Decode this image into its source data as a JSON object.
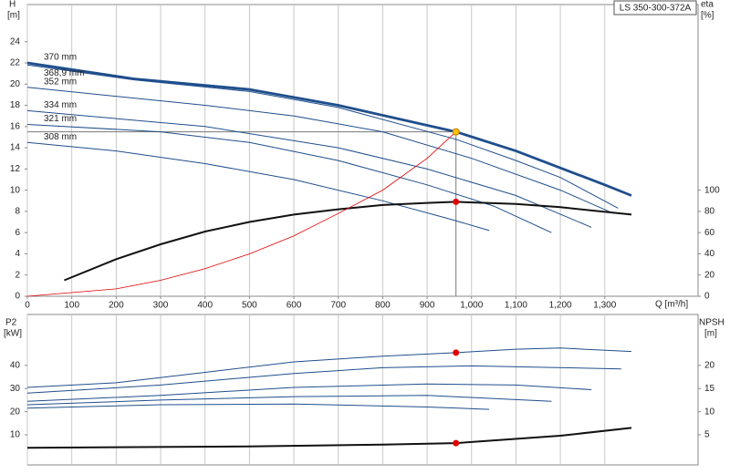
{
  "chart_data": [
    {
      "type": "line",
      "title": "LS 350-300-372A",
      "xlabel": "Q [m³/h]",
      "ylabel": "H",
      "ylabel_unit": "[m]",
      "y2label": "eta",
      "y2label_unit": "[%]",
      "xlim": [
        0,
        1510
      ],
      "xticks": [
        0,
        100,
        200,
        300,
        400,
        500,
        600,
        700,
        800,
        900,
        {
          "value": 1000,
          "label": "1,000"
        },
        {
          "value": 1100,
          "label": "1,100"
        },
        {
          "value": 1200,
          "label": "1,200"
        },
        {
          "value": 1300,
          "label": "1,300"
        }
      ],
      "ylim": [
        0,
        27.5
      ],
      "yticks": [
        0,
        2,
        4,
        6,
        8,
        10,
        12,
        14,
        16,
        18,
        20,
        22,
        24
      ],
      "y2lim": [
        0,
        275
      ],
      "y2ticks": [
        0,
        20,
        40,
        60,
        80,
        100
      ],
      "grid": true,
      "series": [
        {
          "name": "370 mm",
          "color": "#1f4e8c",
          "x": [
            0,
            240,
            500,
            700,
            965,
            1100,
            1300,
            1360
          ],
          "values": [
            22,
            20.5,
            19.5,
            18,
            15.5,
            13.7,
            10.5,
            9.5
          ]
        },
        {
          "name": "368,9 mm",
          "color": "#1f4e8c",
          "x": [
            0,
            240,
            500,
            700,
            965,
            1100,
            1200,
            1330
          ],
          "values": [
            21.8,
            20.4,
            19.3,
            17.8,
            14.8,
            12.8,
            11.2,
            8.3
          ]
        },
        {
          "name": "352 mm",
          "color": "#1f4e8c",
          "x": [
            0,
            400,
            600,
            800,
            1000,
            1200,
            1320
          ],
          "values": [
            19.7,
            18,
            17,
            15.5,
            13,
            10,
            7.8
          ]
        },
        {
          "name": "334 mm",
          "color": "#1f4e8c",
          "x": [
            0,
            400,
            700,
            900,
            1100,
            1270
          ],
          "values": [
            17.5,
            16,
            14,
            12,
            9.5,
            6.5
          ]
        },
        {
          "name": "321 mm",
          "color": "#1f4e8c",
          "x": [
            0,
            300,
            500,
            700,
            900,
            1050,
            1180
          ],
          "values": [
            16.2,
            15.5,
            14.5,
            12.8,
            10.5,
            8.5,
            6
          ]
        },
        {
          "name": "308 mm",
          "color": "#1f4e8c",
          "x": [
            0,
            200,
            400,
            600,
            800,
            950,
            1040
          ],
          "values": [
            14.5,
            13.7,
            12.5,
            11,
            9,
            7.3,
            6.2
          ]
        },
        {
          "color": "#111111",
          "axis": "y2",
          "x": [
            83,
            200,
            300,
            400,
            500,
            600,
            700,
            800,
            900,
            965,
            1100,
            1200,
            1360
          ],
          "values": [
            15,
            35,
            49,
            61,
            70,
            77,
            82,
            86,
            88,
            89,
            87,
            84,
            77
          ]
        },
        {
          "color": "#e00000",
          "x": [
            0,
            200,
            300,
            400,
            500,
            600,
            700,
            800,
            900,
            965
          ],
          "values": [
            0,
            0.7,
            1.5,
            2.6,
            4,
            5.7,
            7.8,
            10,
            13,
            15.5
          ]
        }
      ],
      "points": [
        {
          "x": 965,
          "y": 15.5,
          "color": "#ffc000"
        },
        {
          "x": 965,
          "y": 89,
          "axis": "y2",
          "color": "#e00000"
        }
      ]
    },
    {
      "type": "line",
      "ylabel": "P2",
      "ylabel_unit": "[kW]",
      "y2label": "NPSH",
      "y2label_unit": "[m]",
      "xlim": [
        0,
        1510
      ],
      "ylim": [
        -3,
        62
      ],
      "yticks": [
        10,
        20,
        30,
        40
      ],
      "y2lim": [
        -1.5,
        31
      ],
      "y2ticks": [
        5,
        10,
        15,
        20
      ],
      "grid": true,
      "series": [
        {
          "color": "#1f4e8c",
          "x": [
            0,
            200,
            400,
            600,
            800,
            965,
            1100,
            1200,
            1360
          ],
          "values": [
            30.5,
            32.5,
            37,
            41.5,
            44,
            45.5,
            47,
            47.5,
            46
          ]
        },
        {
          "color": "#1f4e8c",
          "x": [
            0,
            300,
            600,
            800,
            1000,
            1337
          ],
          "values": [
            28,
            31.5,
            36.5,
            39,
            39.8,
            38.5
          ]
        },
        {
          "color": "#1f4e8c",
          "x": [
            0,
            300,
            600,
            900,
            1100,
            1270
          ],
          "values": [
            24.5,
            27,
            30.5,
            32,
            31.5,
            29.5
          ]
        },
        {
          "color": "#1f4e8c",
          "x": [
            0,
            300,
            600,
            900,
            1180
          ],
          "values": [
            23,
            25,
            26.5,
            27,
            24.5
          ]
        },
        {
          "color": "#1f4e8c",
          "x": [
            0,
            300,
            600,
            900,
            1040
          ],
          "values": [
            21.5,
            23,
            23.3,
            22,
            21
          ]
        },
        {
          "color": "#111111",
          "axis": "y2",
          "x": [
            0,
            500,
            800,
            965,
            1200,
            1360
          ],
          "values": [
            2.2,
            2.5,
            2.9,
            3.2,
            4.8,
            6.5
          ]
        }
      ],
      "points": [
        {
          "x": 965,
          "y": 45.5,
          "color": "#e00000"
        },
        {
          "x": 965,
          "y": 3.2,
          "axis": "y2",
          "color": "#e00000"
        }
      ]
    }
  ]
}
